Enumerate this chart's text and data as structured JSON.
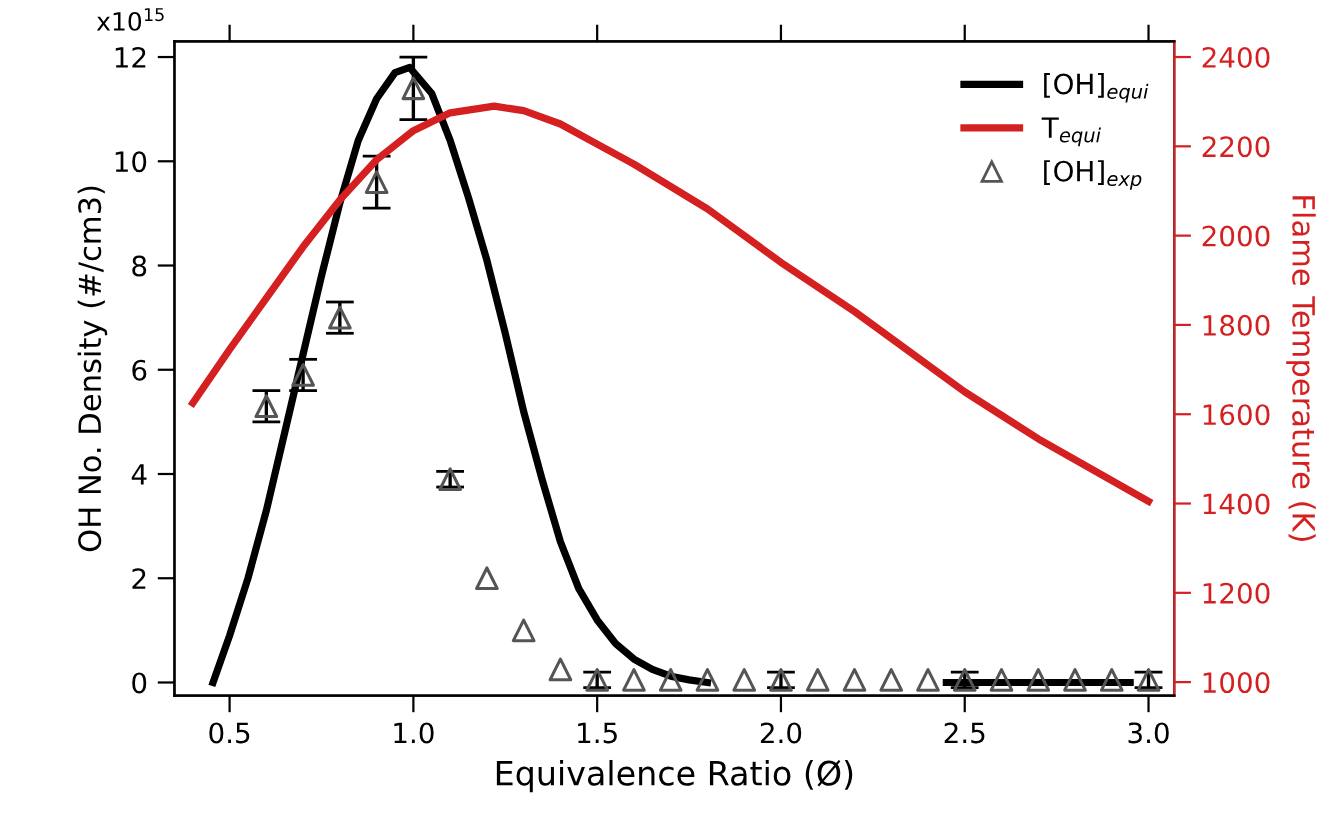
{
  "chart_data": {
    "type": "line",
    "xlabel": "Equivalence Ratio (Ø)",
    "ylabel": "OH No. Density (#/cm3)",
    "y2label": "Flame Temperature (K)",
    "annotations": [
      "x10$^{15}$"
    ],
    "xlim": [
      0.35,
      3.07
    ],
    "xticks": [
      {
        "value": 0.5,
        "label": "0.5"
      },
      {
        "value": 1.0,
        "label": "1.0"
      },
      {
        "value": 1.5,
        "label": "1.5"
      },
      {
        "value": 2.0,
        "label": "2.0"
      },
      {
        "value": 2.5,
        "label": "2.5"
      },
      {
        "value": 3.0,
        "label": "3.0"
      }
    ],
    "ylim": [
      -0.25,
      12.3
    ],
    "yticks": [
      0,
      2,
      4,
      6,
      8,
      10,
      12
    ],
    "y2lim": [
      970,
      2435
    ],
    "y2ticks": [
      1000,
      1200,
      1400,
      1600,
      1800,
      2000,
      2200,
      2400
    ],
    "grid": false,
    "legend": "top right",
    "series": [
      {
        "name": "[OH]$_{equi}$",
        "color": "#000000",
        "x": [
          0.455,
          0.5,
          0.55,
          0.6,
          0.65,
          0.7,
          0.75,
          0.8,
          0.85,
          0.9,
          0.95,
          0.99,
          1.05,
          1.1,
          1.15,
          1.2,
          1.25,
          1.3,
          1.35,
          1.4,
          1.45,
          1.5,
          1.55,
          1.6,
          1.65,
          1.7,
          1.75,
          1.8,
          2.1,
          2.45,
          2.95
        ],
        "values": [
          0,
          0.9,
          2.0,
          3.3,
          4.8,
          6.3,
          7.8,
          9.2,
          10.4,
          11.2,
          11.7,
          11.8,
          11.3,
          10.4,
          9.3,
          8.1,
          6.7,
          5.2,
          3.9,
          2.7,
          1.8,
          1.2,
          0.75,
          0.45,
          0.25,
          0.12,
          0.05,
          0,
          null,
          0,
          0
        ]
      },
      {
        "name": "T$_{equi}$",
        "type": "line",
        "axis": "y2",
        "color": "#d42020",
        "x": [
          0.4,
          0.5,
          0.6,
          0.7,
          0.8,
          0.9,
          1.0,
          1.1,
          1.22,
          1.3,
          1.4,
          1.5,
          1.6,
          1.8,
          2.0,
          2.2,
          2.5,
          2.7,
          3.0
        ],
        "values": [
          1625,
          1745,
          1860,
          1975,
          2080,
          2170,
          2235,
          2275,
          2290,
          2280,
          2250,
          2205,
          2160,
          2060,
          1940,
          1830,
          1650,
          1545,
          1405
        ]
      },
      {
        "name": "[OH]$_{exp}$",
        "type": "scatter",
        "marker": "triangle",
        "color": "#555555",
        "x": [
          0.6,
          0.7,
          0.8,
          0.9,
          1.0,
          1.1,
          1.2,
          1.3,
          1.4,
          1.5,
          1.6,
          1.7,
          1.8,
          1.9,
          2.0,
          2.1,
          2.2,
          2.3,
          2.4,
          2.5,
          2.6,
          2.7,
          2.8,
          2.9,
          3.0
        ],
        "values": [
          5.3,
          5.9,
          7.0,
          9.6,
          11.4,
          3.9,
          2.0,
          1.0,
          0.25,
          0.05,
          0.05,
          0.05,
          0.05,
          0.05,
          0.05,
          0.05,
          0.05,
          0.05,
          0.05,
          0.05,
          0.05,
          0.05,
          0.05,
          0.05,
          0.05
        ],
        "errors": [
          0.3,
          0.3,
          0.3,
          0.5,
          0.6,
          0.15,
          null,
          null,
          null,
          0.15,
          null,
          null,
          null,
          null,
          0.15,
          null,
          null,
          null,
          null,
          0.15,
          null,
          null,
          null,
          null,
          0.15
        ]
      }
    ]
  }
}
